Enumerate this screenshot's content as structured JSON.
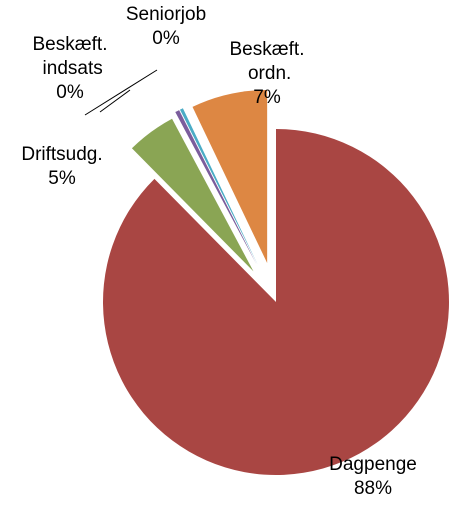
{
  "chart_data": {
    "type": "pie",
    "categories": [
      "Dagpenge",
      "Driftsudg.",
      "Beskæft. indsats",
      "Seniorjob",
      "Beskæft. ordn."
    ],
    "values": [
      87.6,
      4.6,
      0.4,
      0.3,
      7.1
    ],
    "value_labels": [
      "88%",
      "5%",
      "0%",
      "0%",
      "7%"
    ],
    "colors": [
      "#a94643",
      "#8aa554",
      "#7b5d9c",
      "#4bacc6",
      "#dd8743"
    ]
  }
}
